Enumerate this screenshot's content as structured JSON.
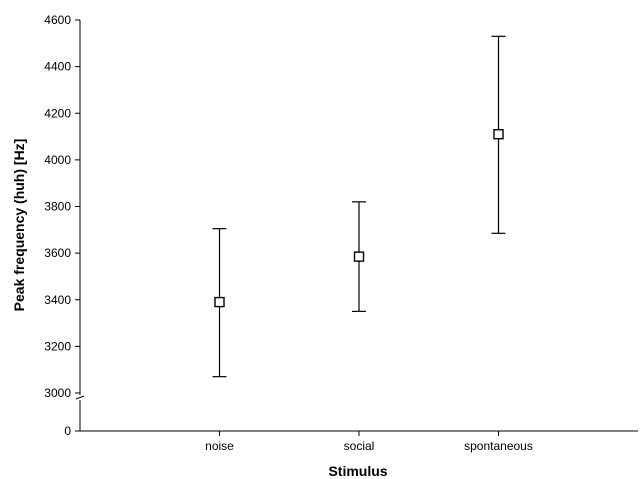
{
  "chart_data": {
    "type": "scatter",
    "title": "",
    "xlabel": "Stimulus",
    "ylabel": "Peak frequency (huh) [Hz]",
    "categories": [
      "noise",
      "social",
      "spontaneous"
    ],
    "series": [
      {
        "values": [
          3390,
          3585,
          4110
        ],
        "lower": [
          3070,
          3350,
          3685
        ],
        "upper": [
          3705,
          3820,
          4530
        ]
      }
    ],
    "y_ticks": [
      "4600",
      "4400",
      "4200",
      "4000",
      "3800",
      "3600",
      "3400",
      "3200",
      "3000",
      "0"
    ],
    "ylim_upper": [
      3000,
      4600
    ],
    "ylim_lower": [
      0,
      0
    ],
    "axis_break": true,
    "grid": false,
    "legend": "none",
    "marker": "open-square"
  }
}
